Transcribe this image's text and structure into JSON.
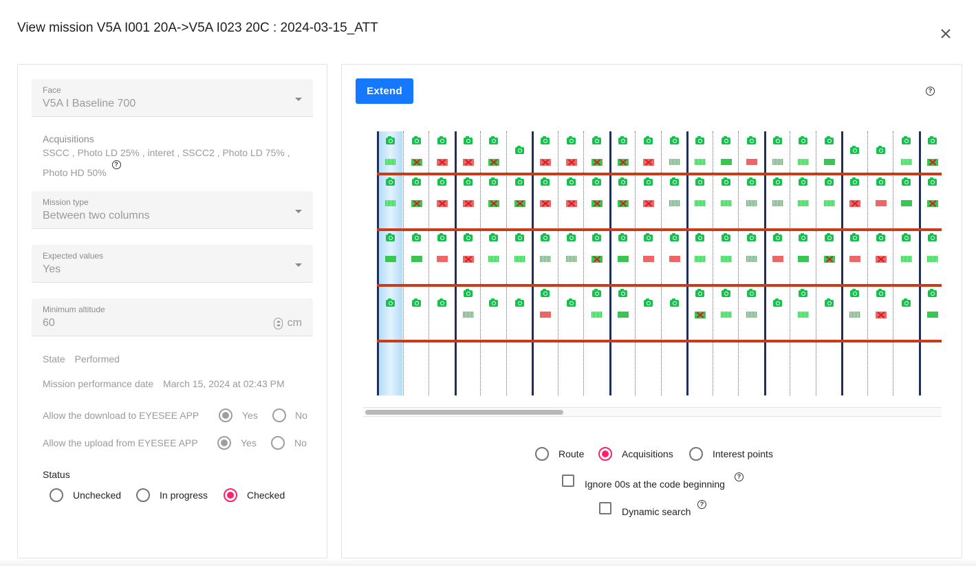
{
  "dialog": {
    "title": "View mission V5A I001 20A->V5A I023 20C : 2024-03-15_ATT",
    "close_icon": "close-icon"
  },
  "left": {
    "face": {
      "label": "Face",
      "value": "V5A I Baseline 700"
    },
    "acquisitions": {
      "label": "Acquisitions",
      "line1": "SSCC , Photo LD 25% , interet , SSCC2 , Photo LD 75% ,",
      "line2": "Photo HD 50%"
    },
    "mission_type": {
      "label": "Mission type",
      "value": "Between two columns"
    },
    "expected_values": {
      "label": "Expected values",
      "value": "Yes"
    },
    "min_altitude": {
      "label": "Minimum altitude",
      "value": "60",
      "unit": "cm"
    },
    "state": {
      "label": "State",
      "value": "Performed"
    },
    "performance_date": {
      "label": "Mission performance date",
      "value": "March 15, 2024 at 02:43 PM"
    },
    "download": {
      "label": "Allow the download to EYESEE APP",
      "yes": "Yes",
      "no": "No",
      "selected": "yes"
    },
    "upload": {
      "label": "Allow the upload from EYESEE APP",
      "yes": "Yes",
      "no": "No",
      "selected": "yes"
    },
    "status": {
      "label": "Status",
      "options": [
        "Unchecked",
        "In progress",
        "Checked"
      ],
      "selected": "Checked"
    }
  },
  "right": {
    "extend_label": "Extend",
    "view_options": [
      "Route",
      "Acquisitions",
      "Interest points"
    ],
    "view_selected": "Acquisitions",
    "ignore_zeros_label": "Ignore 00s at the code beginning",
    "dynamic_search_label": "Dynamic search",
    "colors": {
      "camera": "#12c24a",
      "rack_line": "#1f3058",
      "level_line": "#cc3b17",
      "selection": "#b4dcf8",
      "accent": "#ff1f6a",
      "primary": "#1677ff"
    }
  },
  "rack": {
    "columns": 22,
    "levels": 5,
    "selected_column": 0,
    "rows": [
      {
        "camera": [
          1,
          1,
          1,
          1,
          1,
          1,
          1,
          1,
          1,
          1,
          1,
          1,
          1,
          1,
          1,
          1,
          1,
          1,
          1,
          1,
          1,
          1
        ],
        "code": [
          "ok",
          "x",
          "x",
          "x",
          "x",
          "-",
          "x",
          "x",
          "x",
          "x",
          "x",
          "ok",
          "ok",
          "mix",
          "mix",
          "ok",
          "ok",
          "mix",
          "-",
          "-",
          "ok",
          "x"
        ]
      },
      {
        "camera": [
          1,
          1,
          1,
          1,
          1,
          1,
          1,
          1,
          1,
          1,
          1,
          1,
          1,
          1,
          1,
          1,
          1,
          1,
          1,
          1,
          1,
          1
        ],
        "code": [
          "ok",
          "x",
          "x",
          "x",
          "x",
          "x",
          "x",
          "x",
          "x",
          "x",
          "x",
          "ok",
          "ok",
          "ok",
          "ok",
          "ok",
          "ok",
          "ok",
          "x",
          "mix",
          "mix",
          "x"
        ]
      },
      {
        "camera": [
          1,
          1,
          1,
          1,
          1,
          1,
          1,
          1,
          1,
          1,
          1,
          1,
          1,
          1,
          1,
          1,
          1,
          1,
          1,
          1,
          1,
          1
        ],
        "code": [
          "mix",
          "mix",
          "mix",
          "x",
          "ok",
          "ok",
          "ok",
          "ok",
          "x",
          "mix",
          "mix",
          "mix",
          "ok",
          "ok",
          "ok",
          "mix",
          "mix",
          "x",
          "mix",
          "x",
          "ok",
          "ok"
        ]
      },
      {
        "camera": [
          1,
          1,
          1,
          1,
          1,
          1,
          1,
          1,
          1,
          1,
          1,
          1,
          1,
          1,
          1,
          1,
          1,
          1,
          1,
          1,
          1,
          1
        ],
        "code": [
          "-",
          "-",
          "-",
          "ok",
          "-",
          "-",
          "mix",
          "-",
          "ok",
          "mix",
          "-",
          "-",
          "x",
          "ok",
          "ok",
          "-",
          "ok",
          "-",
          "ok",
          "x",
          "-",
          "mix"
        ]
      },
      {
        "camera": [
          0,
          0,
          0,
          0,
          0,
          0,
          0,
          0,
          0,
          0,
          0,
          0,
          0,
          0,
          0,
          0,
          0,
          0,
          0,
          0,
          0,
          0
        ],
        "code": [
          "-",
          "-",
          "-",
          "-",
          "-",
          "-",
          "-",
          "-",
          "-",
          "-",
          "-",
          "-",
          "-",
          "-",
          "-",
          "-",
          "-",
          "-",
          "-",
          "-",
          "-",
          "-"
        ]
      }
    ]
  }
}
